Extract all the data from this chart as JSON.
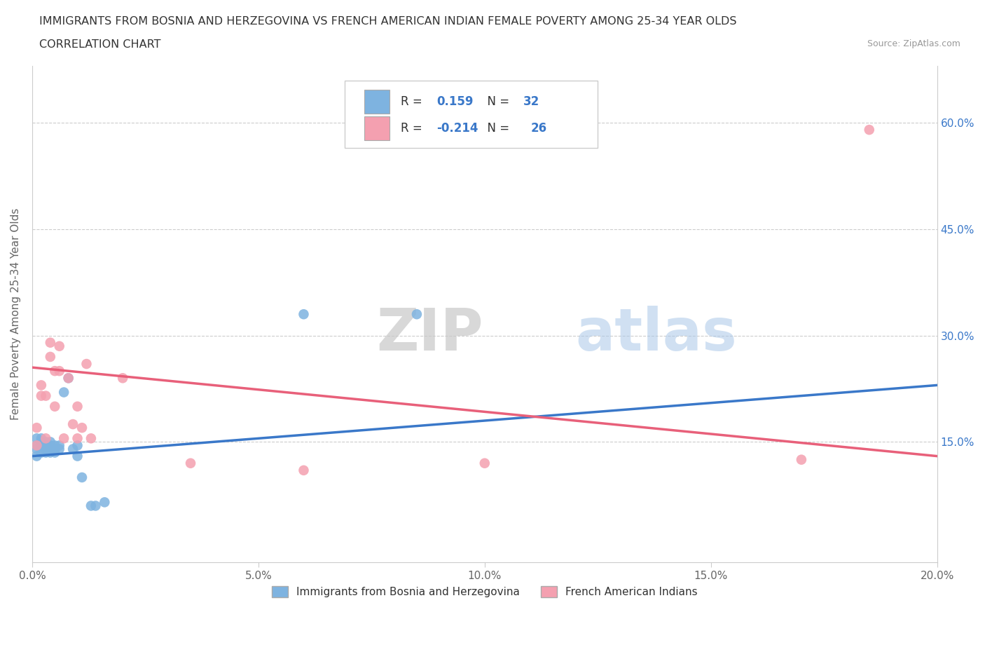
{
  "title_line1": "IMMIGRANTS FROM BOSNIA AND HERZEGOVINA VS FRENCH AMERICAN INDIAN FEMALE POVERTY AMONG 25-34 YEAR OLDS",
  "title_line2": "CORRELATION CHART",
  "source": "Source: ZipAtlas.com",
  "ylabel": "Female Poverty Among 25-34 Year Olds",
  "xlim": [
    0.0,
    0.2
  ],
  "ylim": [
    -0.02,
    0.68
  ],
  "yticks": [
    0.0,
    0.15,
    0.3,
    0.45,
    0.6
  ],
  "xticks": [
    0.0,
    0.05,
    0.1,
    0.15,
    0.2
  ],
  "xtick_labels": [
    "0.0%",
    "5.0%",
    "10.0%",
    "15.0%",
    "20.0%"
  ],
  "ytick_labels": [
    "",
    "15.0%",
    "30.0%",
    "45.0%",
    "60.0%"
  ],
  "blue_color": "#7eb3e0",
  "pink_color": "#f4a0b0",
  "blue_line_color": "#3a78c9",
  "pink_line_color": "#e8607a",
  "watermark_zip": "ZIP",
  "watermark_atlas": "atlas",
  "legend_label_blue": "Immigrants from Bosnia and Herzegovina",
  "legend_label_pink": "French American Indians",
  "blue_R_text": "0.159",
  "blue_N_text": "32",
  "pink_R_text": "-0.214",
  "pink_N_text": "26",
  "blue_scatter_x": [
    0.001,
    0.001,
    0.001,
    0.001,
    0.002,
    0.002,
    0.002,
    0.002,
    0.003,
    0.003,
    0.003,
    0.003,
    0.004,
    0.004,
    0.004,
    0.004,
    0.005,
    0.005,
    0.005,
    0.006,
    0.006,
    0.007,
    0.008,
    0.009,
    0.01,
    0.01,
    0.011,
    0.013,
    0.014,
    0.016,
    0.06,
    0.085
  ],
  "blue_scatter_y": [
    0.13,
    0.14,
    0.145,
    0.155,
    0.135,
    0.145,
    0.15,
    0.155,
    0.135,
    0.14,
    0.145,
    0.15,
    0.135,
    0.14,
    0.145,
    0.15,
    0.135,
    0.14,
    0.145,
    0.14,
    0.145,
    0.22,
    0.24,
    0.14,
    0.13,
    0.145,
    0.1,
    0.06,
    0.06,
    0.065,
    0.33,
    0.33
  ],
  "pink_scatter_x": [
    0.001,
    0.001,
    0.002,
    0.002,
    0.003,
    0.003,
    0.004,
    0.004,
    0.005,
    0.005,
    0.006,
    0.006,
    0.007,
    0.008,
    0.009,
    0.01,
    0.01,
    0.011,
    0.012,
    0.013,
    0.02,
    0.035,
    0.06,
    0.1,
    0.17,
    0.185
  ],
  "pink_scatter_y": [
    0.145,
    0.17,
    0.215,
    0.23,
    0.155,
    0.215,
    0.27,
    0.29,
    0.2,
    0.25,
    0.25,
    0.285,
    0.155,
    0.24,
    0.175,
    0.2,
    0.155,
    0.17,
    0.26,
    0.155,
    0.24,
    0.12,
    0.11,
    0.12,
    0.125,
    0.59
  ]
}
